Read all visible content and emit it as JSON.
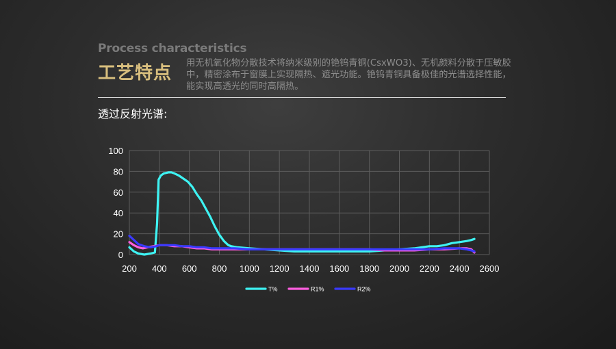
{
  "header": {
    "title_en": "Process characteristics",
    "title_cn": "工艺特点",
    "description": "用无机氧化物分散技术将纳米级别的铯钨青铜(CsxWO3)、无机颜料分散于压敏胶中，精密涂布于窗膜上实现隔热、遮光功能。铯钨青铜具备极佳的光谱选择性能，能实现高透光的同时高隔热。",
    "subtitle": "透过反射光谱:"
  },
  "chart_data": {
    "type": "line",
    "xlim": [
      200,
      2600
    ],
    "ylim": [
      0,
      100
    ],
    "x_ticks": [
      200,
      400,
      600,
      800,
      1000,
      1200,
      1400,
      1600,
      1800,
      2000,
      2200,
      2400,
      2600
    ],
    "y_ticks": [
      0,
      20,
      40,
      60,
      80,
      100
    ],
    "grid": true,
    "legend_position": "bottom",
    "series": [
      {
        "name": "T%",
        "color": "#3ef3f3",
        "points": [
          [
            200,
            7
          ],
          [
            230,
            3
          ],
          [
            260,
            1
          ],
          [
            300,
            0
          ],
          [
            340,
            1
          ],
          [
            370,
            2
          ],
          [
            385,
            30
          ],
          [
            395,
            72
          ],
          [
            410,
            76
          ],
          [
            430,
            78
          ],
          [
            460,
            79
          ],
          [
            480,
            79
          ],
          [
            500,
            78
          ],
          [
            530,
            76
          ],
          [
            560,
            73
          ],
          [
            590,
            70
          ],
          [
            620,
            65
          ],
          [
            650,
            58
          ],
          [
            680,
            52
          ],
          [
            710,
            44
          ],
          [
            740,
            36
          ],
          [
            770,
            27
          ],
          [
            800,
            19
          ],
          [
            830,
            13
          ],
          [
            860,
            9
          ],
          [
            880,
            8
          ],
          [
            920,
            7
          ],
          [
            1000,
            6
          ],
          [
            1100,
            5
          ],
          [
            1200,
            4
          ],
          [
            1300,
            3
          ],
          [
            1400,
            3
          ],
          [
            1500,
            3
          ],
          [
            1600,
            3
          ],
          [
            1700,
            3
          ],
          [
            1800,
            3
          ],
          [
            1900,
            4
          ],
          [
            2000,
            5
          ],
          [
            2100,
            6
          ],
          [
            2200,
            8
          ],
          [
            2250,
            8
          ],
          [
            2300,
            9
          ],
          [
            2350,
            11
          ],
          [
            2400,
            12
          ],
          [
            2450,
            13
          ],
          [
            2480,
            14
          ],
          [
            2500,
            15
          ]
        ]
      },
      {
        "name": "R1%",
        "color": "#ff5ee0",
        "points": [
          [
            200,
            12
          ],
          [
            230,
            9
          ],
          [
            260,
            7
          ],
          [
            290,
            6
          ],
          [
            320,
            7
          ],
          [
            360,
            8
          ],
          [
            400,
            9
          ],
          [
            450,
            9
          ],
          [
            500,
            8
          ],
          [
            550,
            8
          ],
          [
            600,
            7
          ],
          [
            650,
            6
          ],
          [
            700,
            6
          ],
          [
            750,
            5
          ],
          [
            800,
            5
          ],
          [
            850,
            5
          ],
          [
            900,
            5
          ],
          [
            1000,
            5
          ],
          [
            1100,
            5
          ],
          [
            1200,
            5
          ],
          [
            1300,
            5
          ],
          [
            1400,
            5
          ],
          [
            1500,
            5
          ],
          [
            1600,
            5
          ],
          [
            1700,
            5
          ],
          [
            1800,
            5
          ],
          [
            1900,
            4
          ],
          [
            2000,
            4
          ],
          [
            2100,
            4
          ],
          [
            2200,
            5
          ],
          [
            2300,
            5
          ],
          [
            2400,
            6
          ],
          [
            2450,
            6
          ],
          [
            2480,
            5
          ],
          [
            2500,
            2
          ]
        ]
      },
      {
        "name": "R2%",
        "color": "#3a3aff",
        "points": [
          [
            200,
            18
          ],
          [
            230,
            14
          ],
          [
            260,
            10
          ],
          [
            300,
            8
          ],
          [
            340,
            7
          ],
          [
            380,
            8
          ],
          [
            400,
            9
          ],
          [
            450,
            9
          ],
          [
            500,
            9
          ],
          [
            550,
            8
          ],
          [
            600,
            8
          ],
          [
            650,
            7
          ],
          [
            700,
            7
          ],
          [
            750,
            6
          ],
          [
            800,
            6
          ],
          [
            850,
            6
          ],
          [
            900,
            6
          ],
          [
            1000,
            5
          ],
          [
            1100,
            5
          ],
          [
            1200,
            5
          ],
          [
            1300,
            5
          ],
          [
            1400,
            5
          ],
          [
            1500,
            5
          ],
          [
            1600,
            5
          ],
          [
            1700,
            5
          ],
          [
            1800,
            5
          ],
          [
            1900,
            5
          ],
          [
            2000,
            5
          ],
          [
            2100,
            5
          ],
          [
            2200,
            5
          ],
          [
            2300,
            6
          ],
          [
            2400,
            6
          ],
          [
            2450,
            5
          ],
          [
            2480,
            4
          ],
          [
            2500,
            3
          ]
        ]
      }
    ]
  }
}
